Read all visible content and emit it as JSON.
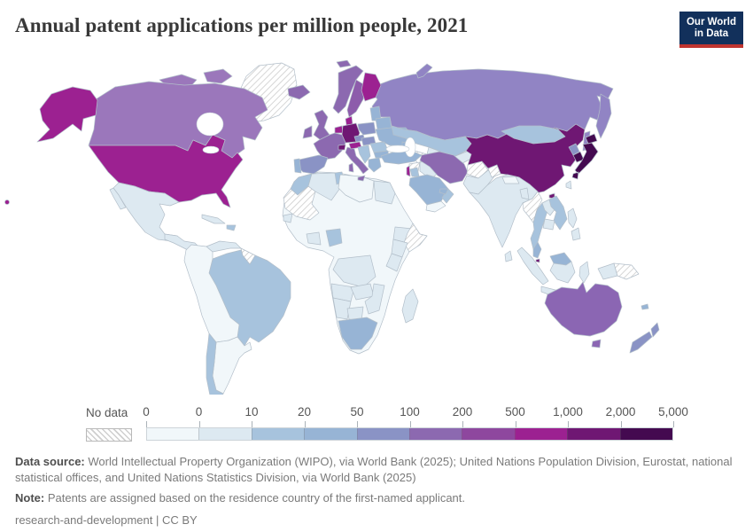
{
  "header": {
    "title": "Annual patent applications per million people, 2021",
    "logo_line1": "Our World",
    "logo_line2": "in Data",
    "logo_bg": "#12305b",
    "logo_accent": "#c0342f"
  },
  "legend": {
    "no_data_label": "No data",
    "tick_labels": [
      "0",
      "0",
      "10",
      "20",
      "50",
      "100",
      "200",
      "500",
      "1,000",
      "2,000",
      "5,000"
    ],
    "band_colors": [
      "#f1f7fa",
      "#dde9f1",
      "#a7c3dd",
      "#97b4d5",
      "#8a93c5",
      "#8c69b0",
      "#8e479e",
      "#9c2191",
      "#6f1773",
      "#440a50"
    ]
  },
  "footer": {
    "source_label": "Data source:",
    "source_text": " World Intellectual Property Organization (WIPO), via World Bank (2025); United Nations Population Division, Eurostat, national statistical offices, and United Nations Statistics Division, via World Bank (2025)",
    "note_label": "Note:",
    "note_text": " Patents are assigned based on the residence country of the first-named applicant.",
    "license_left": "research-and-development",
    "license_sep": " | ",
    "license_right": "CC BY"
  },
  "map": {
    "ocean": "#ffffff",
    "border_color": "#b3bfca",
    "regions": {
      "hawaii": "#9c2191",
      "alaska": "#9c2191",
      "usa": "#9c2191",
      "canada": "#9b77bb",
      "canada_arctic": "#9b77bb",
      "greenland": "hatch",
      "mexico": "#dde9f1",
      "baja": "#dde9f1",
      "central_america": "#dde9f1",
      "cuba": "#dde9f1",
      "hispaniola": "#a7c3dd",
      "venezuela": "#dde9f1",
      "guyanas": "hatch",
      "brazil": "#a7c3dd",
      "sa_west": "#f1f7fa",
      "argentina": "#f1f7fa",
      "chile": "#a7c3dd",
      "iceland": "#8c69b0",
      "svalbard": "#8c69b0",
      "norway": "#8c69b0",
      "sweden": "#8d5cab",
      "finland": "#9c2191",
      "denmark": "#9c2191",
      "uk": "#8c69b0",
      "ireland": "#8c69b0",
      "benelux": "#9c2191",
      "germany": "#6f1773",
      "france": "#8c69b0",
      "spain": "#8a93c5",
      "portugal": "#97b4d5",
      "italy": "#8c69b0",
      "switzerland": "#6f1773",
      "austria": "#9c2191",
      "czech": "#8a93c5",
      "poland": "#8a93c5",
      "baltics": "#97b4d5",
      "belarus": "#97b4d5",
      "ukraine": "#97b4d5",
      "slovakia_hungary": "#8a93c5",
      "romania": "#a7c3dd",
      "bulgaria": "#97b4d5",
      "balkans": "#a7c3dd",
      "greece": "#97b4d5",
      "russia": "#9184c4",
      "kazakhstan": "#a7c3dd",
      "uzbekistan": "#dde9f1",
      "turkmenistan": "hatch",
      "kyrgyz_tajik": "#dde9f1",
      "caucasus": "#97b4d5",
      "turkey": "#97b4d5",
      "syria": "hatch",
      "iraq": "#dde9f1",
      "israel": "#9c2191",
      "jordan": "#a7c3dd",
      "saudi": "#97b4d5",
      "yemen": "#f1f7fa",
      "oman": "#a7c3dd",
      "uae": "#97b4d5",
      "iran": "#8c69b0",
      "afghanistan": "hatch",
      "pakistan": "#dde9f1",
      "kashmir": "hatch",
      "india": "#dde9f1",
      "nepal": "#f1f7fa",
      "bangladesh": "#dde9f1",
      "sri_lanka": "#dde9f1",
      "china": "#6f1773",
      "hainan": "#6f1773",
      "mongolia": "#a7c3dd",
      "north_korea": "#8a93c5",
      "south_korea": "#440a50",
      "japan": "#440a50",
      "taiwan": "#dde9f1",
      "myanmar": "hatch",
      "thailand": "#a7c3dd",
      "laos": "#dde9f1",
      "vietnam": "#a7c3dd",
      "cambodia": "#dde9f1",
      "malaysia": "#97b4d5",
      "singapore": "#6f1773",
      "indonesia": "#dde9f1",
      "philippines": "#dde9f1",
      "west_papua": "#dde9f1",
      "png": "hatch",
      "australia": "#8b66b3",
      "new_zealand": "#8a93c5",
      "new_caledonia": "#97b4d5",
      "africa_base": "#f1f7fa",
      "morocco": "#a7c3dd",
      "wsahara_mali": "hatch",
      "algeria": "#dde9f1",
      "tunisia": "#a7c3dd",
      "libya": "#f1f7fa",
      "egypt": "#dde9f1",
      "nigeria": "#a7c3dd",
      "ghana": "#dde9f1",
      "senegal": "#dde9f1",
      "ethiopia": "#dde9f1",
      "somalia": "hatch",
      "kenya": "#dde9f1",
      "tanzania": "#dde9f1",
      "drc": "#dde9f1",
      "angola": "#dde9f1",
      "zambia": "#dde9f1",
      "mozambique": "#dde9f1",
      "namibia": "#dde9f1",
      "botswana": "#dde9f1",
      "south_africa": "#97b4d5",
      "madagascar": "#dde9f1"
    }
  }
}
